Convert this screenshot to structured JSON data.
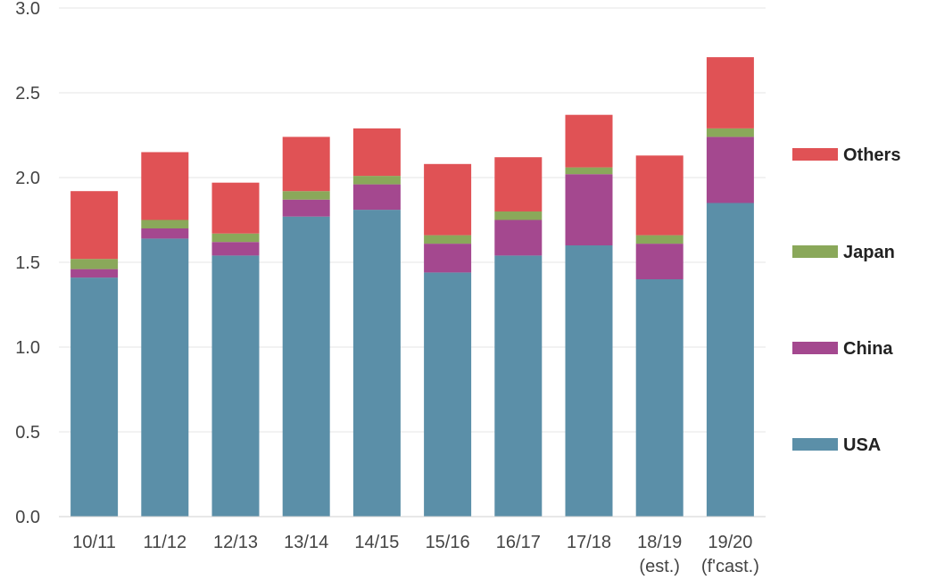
{
  "chart_data": {
    "type": "bar",
    "stacked": true,
    "title": "",
    "xlabel": "",
    "ylabel": "",
    "ylim": [
      0,
      3.0
    ],
    "yticks": [
      "0.0",
      "0.5",
      "1.0",
      "1.5",
      "2.0",
      "2.5",
      "3.0"
    ],
    "grid": true,
    "legend_position": "right",
    "categories": [
      [
        "10/11"
      ],
      [
        "11/12"
      ],
      [
        "12/13"
      ],
      [
        "13/14"
      ],
      [
        "14/15"
      ],
      [
        "15/16"
      ],
      [
        "16/17"
      ],
      [
        "17/18"
      ],
      [
        "18/19",
        "(est.)"
      ],
      [
        "19/20",
        "(f'cast.)"
      ]
    ],
    "series": [
      {
        "name": "USA",
        "color": "#5b8fa8",
        "values": [
          1.41,
          1.64,
          1.54,
          1.77,
          1.81,
          1.44,
          1.54,
          1.6,
          1.4,
          1.85
        ]
      },
      {
        "name": "China",
        "color": "#a4488f",
        "values": [
          0.05,
          0.06,
          0.08,
          0.1,
          0.15,
          0.17,
          0.21,
          0.42,
          0.21,
          0.39
        ]
      },
      {
        "name": "Japan",
        "color": "#8aa85a",
        "values": [
          0.06,
          0.05,
          0.05,
          0.05,
          0.05,
          0.05,
          0.05,
          0.04,
          0.05,
          0.05
        ]
      },
      {
        "name": "Others",
        "color": "#e05255",
        "values": [
          0.4,
          0.4,
          0.3,
          0.32,
          0.28,
          0.42,
          0.32,
          0.31,
          0.47,
          0.42
        ]
      }
    ],
    "legend_order": [
      "Others",
      "Japan",
      "China",
      "USA"
    ]
  }
}
